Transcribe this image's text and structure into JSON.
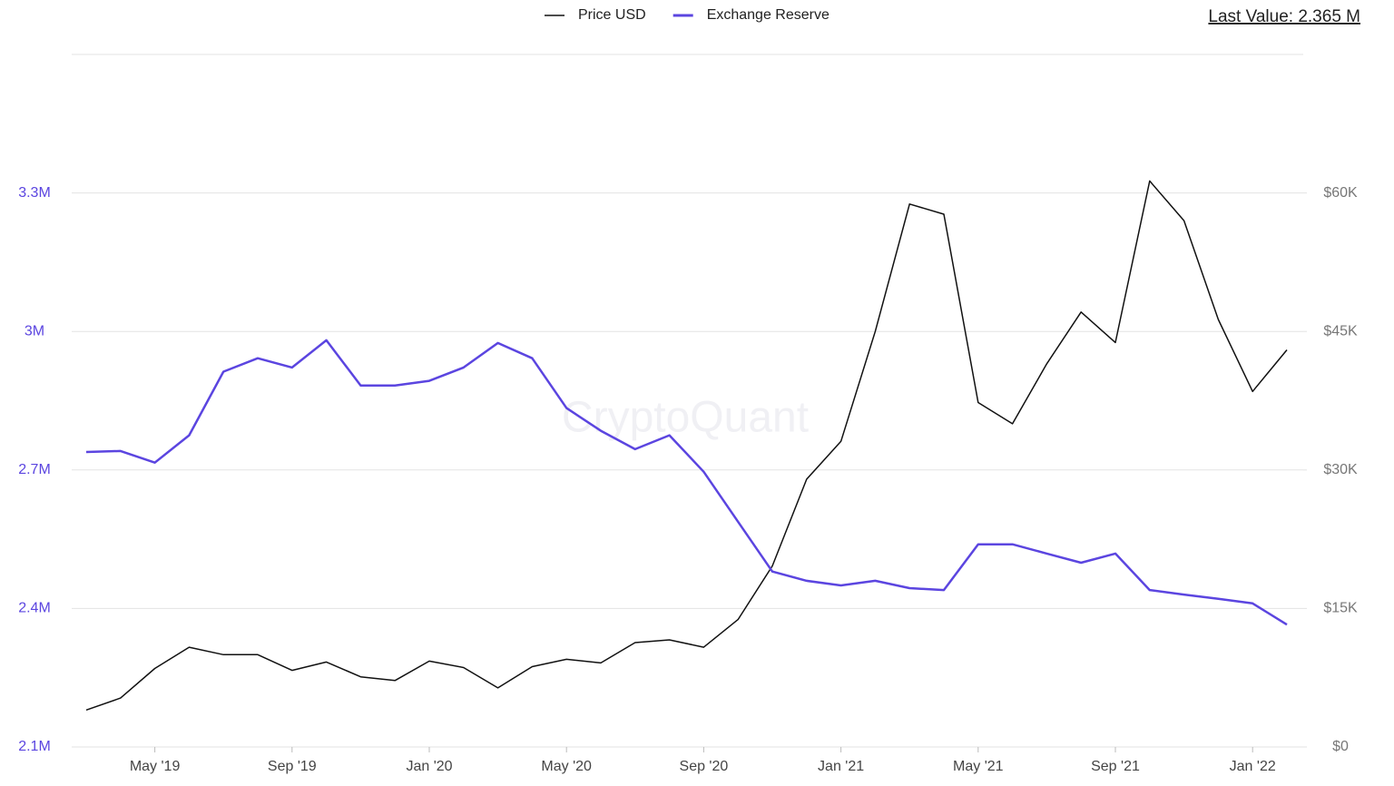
{
  "chart_data": {
    "type": "line",
    "annotation": "Last Value: 2.365 M",
    "watermark": "CryptoQuant",
    "x": [
      "2019-03",
      "2019-04",
      "2019-05",
      "2019-06",
      "2019-07",
      "2019-08",
      "2019-09",
      "2019-10",
      "2019-11",
      "2019-12",
      "2020-01",
      "2020-02",
      "2020-03",
      "2020-04",
      "2020-05",
      "2020-06",
      "2020-07",
      "2020-08",
      "2020-09",
      "2020-10",
      "2020-11",
      "2020-12",
      "2021-01",
      "2021-02",
      "2021-03",
      "2021-04",
      "2021-05",
      "2021-06",
      "2021-07",
      "2021-08",
      "2021-09",
      "2021-10",
      "2021-11",
      "2021-12",
      "2022-01",
      "2022-02"
    ],
    "xlim": [
      "2019-03",
      "2022-02"
    ],
    "xticks": [
      {
        "value": "2019-05",
        "label": "May '19"
      },
      {
        "value": "2019-09",
        "label": "Sep '19"
      },
      {
        "value": "2020-01",
        "label": "Jan '20"
      },
      {
        "value": "2020-05",
        "label": "May '20"
      },
      {
        "value": "2020-09",
        "label": "Sep '20"
      },
      {
        "value": "2021-01",
        "label": "Jan '21"
      },
      {
        "value": "2021-05",
        "label": "May '21"
      },
      {
        "value": "2021-09",
        "label": "Sep '21"
      },
      {
        "value": "2022-01",
        "label": "Jan '22"
      }
    ],
    "ylim": [
      2100000,
      3600000
    ],
    "yticks": [
      {
        "value": 2100000,
        "label": "2.1M"
      },
      {
        "value": 2400000,
        "label": "2.4M"
      },
      {
        "value": 2700000,
        "label": "2.7M"
      },
      {
        "value": 3000000,
        "label": "3M"
      },
      {
        "value": 3300000,
        "label": "3.3M"
      }
    ],
    "y2lim": [
      0,
      75000
    ],
    "y2ticks": [
      {
        "value": 0,
        "label": "$0"
      },
      {
        "value": 15000,
        "label": "$15K"
      },
      {
        "value": 30000,
        "label": "$30K"
      },
      {
        "value": 45000,
        "label": "$45K"
      },
      {
        "value": 60000,
        "label": "$60K"
      }
    ],
    "grid": true,
    "series": [
      {
        "name": "Price USD",
        "color": "#111111",
        "axis": "y2",
        "values": [
          4000,
          5300,
          8500,
          10800,
          10000,
          10000,
          8300,
          9200,
          7600,
          7200,
          9300,
          8600,
          6400,
          8700,
          9500,
          9100,
          11300,
          11600,
          10800,
          13800,
          19600,
          29000,
          33100,
          45000,
          58800,
          57700,
          37300,
          35000,
          41500,
          47100,
          43800,
          61300,
          57000,
          46300,
          38500,
          43000
        ]
      },
      {
        "name": "Exchange Reserve",
        "color": "#5b45e0",
        "values": [
          2739000,
          2741000,
          2716000,
          2775000,
          2913000,
          2942000,
          2922000,
          2981000,
          2883000,
          2883000,
          2893000,
          2922000,
          2975000,
          2942000,
          2834000,
          2785000,
          2745000,
          2775000,
          2696000,
          2588000,
          2480000,
          2460000,
          2450000,
          2460000,
          2444000,
          2440000,
          2539000,
          2539000,
          2519000,
          2499000,
          2519000,
          2440000,
          2430000,
          2421000,
          2411000,
          2365000
        ]
      }
    ]
  }
}
